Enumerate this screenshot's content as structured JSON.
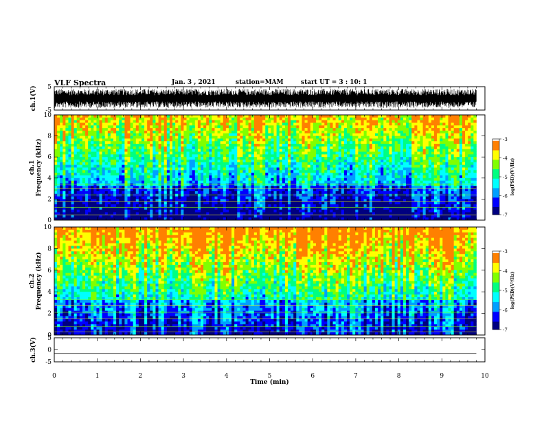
{
  "header": {
    "title": "VLF Spectra",
    "date": "Jan. 3 , 2021",
    "station": "station=MAM",
    "start": "start UT = 3 : 10: 1"
  },
  "chart_data": [
    {
      "type": "line",
      "panel": "ch1-waveform",
      "ylabel": "ch.1(V)",
      "ylim": [
        -5,
        5
      ],
      "yticks": [
        "5",
        "-5"
      ],
      "x_unit": "min",
      "xlim": [
        0,
        10
      ],
      "data_end_min": 9.8,
      "series": [
        {
          "values": "dense burst noise",
          "amplitude_range": [
            -4.5,
            4.5
          ]
        }
      ]
    },
    {
      "type": "heatmap",
      "panel": "ch1-spectrogram",
      "ylabel": "ch.1 Frequency (kHz)",
      "ylim": [
        0,
        10
      ],
      "yticks": [
        "0",
        "2",
        "4",
        "6",
        "8",
        "10"
      ],
      "xlim": [
        0,
        10
      ],
      "data_end_min": 9.8,
      "colorbar": {
        "label": "log(PSD)(V²/Hz)",
        "range": [
          -7,
          -3
        ],
        "ticks": [
          "-3",
          "-4",
          "-5",
          "-6",
          "-7"
        ]
      }
    },
    {
      "type": "heatmap",
      "panel": "ch2-spectrogram",
      "ylabel": "ch.2 Frequency (kHz)",
      "ylim": [
        0,
        10
      ],
      "yticks": [
        "0",
        "2",
        "4",
        "6",
        "8",
        "10"
      ],
      "xlim": [
        0,
        10
      ],
      "data_end_min": 9.8,
      "colorbar": {
        "label": "log(PSD)(V²/Hz)",
        "range": [
          -7,
          -3
        ],
        "ticks": [
          "-3",
          "-4",
          "-5",
          "-6",
          "-7"
        ]
      }
    },
    {
      "type": "line",
      "panel": "ch3-waveform",
      "ylabel": "ch.3(V)",
      "ylim": [
        -5,
        5
      ],
      "yticks": [
        "5",
        "0",
        "-5"
      ],
      "xlim": [
        0,
        10
      ],
      "data_end_min": 9.8,
      "series": [
        {
          "values": "flat",
          "level": -1.5
        }
      ]
    }
  ],
  "xaxis": {
    "label": "Time (min)",
    "ticks": [
      "0",
      "1",
      "2",
      "3",
      "4",
      "5",
      "6",
      "7",
      "8",
      "9",
      "10"
    ]
  },
  "colormap": [
    "#000080",
    "#0000ff",
    "#00a0ff",
    "#00ffff",
    "#00ff80",
    "#80ff00",
    "#ffff00",
    "#ff8000",
    "#ff0000",
    "#ffffff"
  ]
}
